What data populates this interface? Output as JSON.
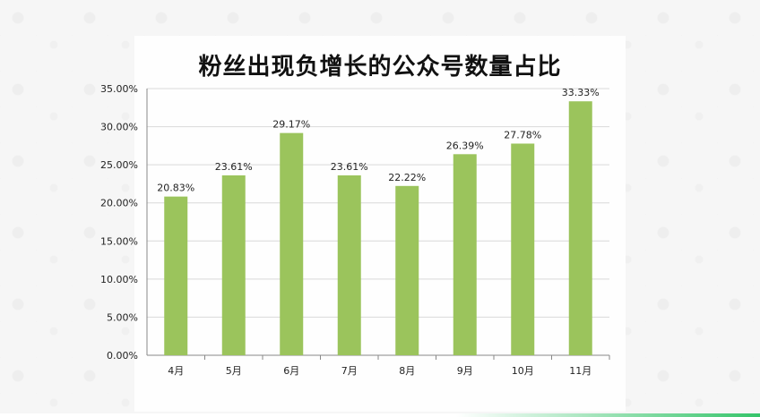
{
  "chart_data": {
    "type": "bar",
    "title": "粉丝出现负增长的公众号数量占比",
    "categories": [
      "4月",
      "5月",
      "6月",
      "7月",
      "8月",
      "9月",
      "10月",
      "11月"
    ],
    "values": [
      20.83,
      23.61,
      29.17,
      23.61,
      22.22,
      26.39,
      27.78,
      33.33
    ],
    "data_labels": [
      "20.83%",
      "23.61%",
      "29.17%",
      "23.61%",
      "22.22%",
      "26.39%",
      "27.78%",
      "33.33%"
    ],
    "y_ticks": [
      "0.00%",
      "5.00%",
      "10.00%",
      "15.00%",
      "20.00%",
      "25.00%",
      "30.00%",
      "35.00%"
    ],
    "ylim": [
      0,
      35
    ],
    "xlabel": "",
    "ylabel": "",
    "grid": true,
    "legend": "none",
    "bar_color": "#9bc45c",
    "grid_color": "#d9d9d9",
    "axis_color": "#888888"
  }
}
